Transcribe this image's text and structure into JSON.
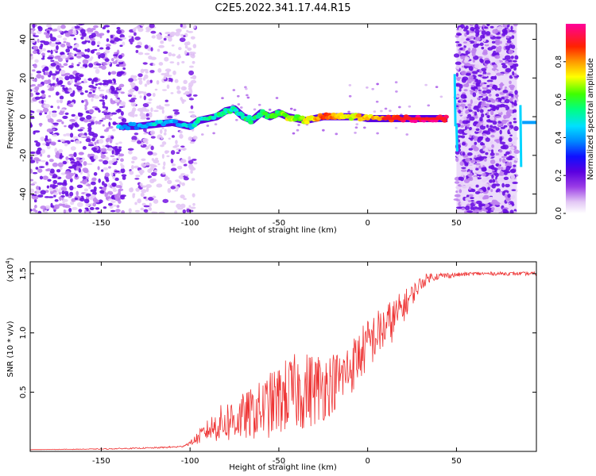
{
  "title": "C2E5.2022.341.17.44.R15",
  "chart_data": [
    {
      "type": "heatmap",
      "xlabel": "Height of straight line (km)",
      "ylabel": "Frequency (Hz)",
      "xlim": [
        -190,
        95
      ],
      "ylim": [
        -50,
        48
      ],
      "xticks": [
        -150,
        -100,
        -50,
        0,
        50
      ],
      "yticks": [
        -40,
        -20,
        0,
        20,
        40
      ],
      "colorbar": {
        "label": "Normalized spectral amplitude",
        "range": [
          0,
          1
        ],
        "ticks": [
          0.0,
          0.2,
          0.4,
          0.6,
          0.8
        ],
        "colormap": "rainbow (white-violet-purple-blue-cyan-green-yellow-orange-red-magenta)"
      },
      "ridge": {
        "points": [
          [
            -140,
            -5,
            0.45
          ],
          [
            -130,
            -5,
            0.4
          ],
          [
            -120,
            -4,
            0.45
          ],
          [
            -110,
            -3,
            0.4
          ],
          [
            -100,
            -5,
            0.45
          ],
          [
            -95,
            -2,
            0.5
          ],
          [
            -85,
            0,
            0.55
          ],
          [
            -80,
            3,
            0.55
          ],
          [
            -75,
            4,
            0.5
          ],
          [
            -70,
            0,
            0.55
          ],
          [
            -65,
            -2,
            0.55
          ],
          [
            -60,
            2,
            0.55
          ],
          [
            -55,
            0,
            0.6
          ],
          [
            -50,
            2,
            0.6
          ],
          [
            -45,
            0,
            0.7
          ],
          [
            -40,
            -1,
            0.65
          ],
          [
            -35,
            -2,
            0.7
          ],
          [
            -30,
            -1,
            0.75
          ],
          [
            -25,
            0,
            0.85
          ],
          [
            -20,
            0,
            0.8
          ],
          [
            -15,
            0,
            0.75
          ],
          [
            -10,
            0,
            0.7
          ],
          [
            -5,
            0,
            0.75
          ],
          [
            0,
            -1,
            0.75
          ],
          [
            10,
            -1,
            0.85
          ],
          [
            20,
            -1,
            0.95
          ],
          [
            30,
            -1,
            1.0
          ],
          [
            40,
            -1,
            1.0
          ],
          [
            45,
            -1,
            0.9
          ]
        ]
      },
      "noise_regions": [
        {
          "x": [
            -190,
            -137
          ],
          "density": "high"
        },
        {
          "x": [
            -134,
            -97
          ],
          "density": "medium"
        },
        {
          "x": [
            50,
            84
          ],
          "density": "high"
        }
      ]
    },
    {
      "type": "line",
      "xlabel": "Height of straight line (km)",
      "ylabel": "SNR (10 * v/v)",
      "multiplier_label": "(x10",
      "multiplier_exp": "4",
      "xlim": [
        -190,
        95
      ],
      "ylim": [
        0,
        16000
      ],
      "xticks": [
        -150,
        -100,
        -50,
        0,
        50
      ],
      "yticks": [
        5000,
        10000,
        15000
      ],
      "ytick_labels": [
        "0.5",
        "1.0",
        "1.5"
      ],
      "color": "#ee3333",
      "series": [
        {
          "x": [
            -190,
            -150,
            -120,
            -105,
            -100,
            -95,
            -90,
            -85,
            -80,
            -75,
            -70,
            -65,
            -60,
            -55,
            -50,
            -45,
            -40,
            -35,
            -30,
            -25,
            -20,
            -15,
            -10,
            -5,
            0,
            5,
            10,
            15,
            20,
            25,
            30,
            35,
            40,
            50,
            60,
            70,
            80,
            90,
            95
          ],
          "values": [
            150,
            200,
            300,
            400,
            700,
            1200,
            1800,
            2200,
            2500,
            2700,
            2900,
            3200,
            3500,
            3900,
            4300,
            4800,
            5000,
            5100,
            5300,
            5500,
            5800,
            6200,
            7000,
            8000,
            9000,
            9800,
            10500,
            11200,
            12200,
            13200,
            14200,
            14700,
            14800,
            14900,
            15000,
            15000,
            15000,
            15000,
            15000
          ],
          "noise_amplitude": [
            0,
            40,
            60,
            80,
            150,
            600,
            900,
            1400,
            1800,
            2000,
            2000,
            2200,
            2500,
            2800,
            3000,
            3200,
            3300,
            3300,
            3200,
            3000,
            2600,
            2400,
            2400,
            2300,
            2200,
            2100,
            2000,
            1800,
            1400,
            900,
            600,
            400,
            300,
            200,
            150,
            150,
            150,
            150,
            150
          ]
        }
      ]
    }
  ]
}
